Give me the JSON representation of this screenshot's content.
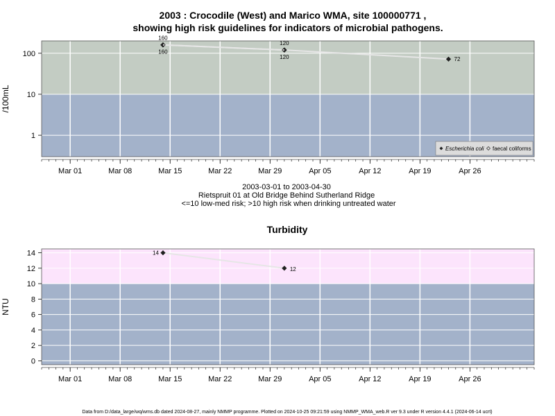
{
  "page": {
    "title_line1": "2003 : Crocodile (West) and Marico WMA, site 100000771 ,",
    "title_line2": "showing high risk guidelines for indicators of microbial pathogens.",
    "subtitle_line1": "2003-03-01 to 2003-04-30",
    "subtitle_line2": "Rietspruit 01 at Old Bridge Behind Sutherland Ridge",
    "subtitle_line3": "<=10 low-med risk; >10 high risk when drinking untreated water",
    "footer": "Data from D:/data_large/wq/wms.db dated 2024-08-27, mainly NMMP programme. Plotted on 2024-10-25 09:21:59 using NMMP_WMA_web.R ver 9.3 under R version 4.4.1 (2024-06-14 ucrt)"
  },
  "colors": {
    "high_risk_microbial": "#c3ccc3",
    "high_risk_turbidity": "#fce4fc",
    "low_risk": "#a3b2ca",
    "grid": "#ffffff",
    "line": "#e6e6e6",
    "point": "#202020"
  },
  "chart_data": [
    {
      "type": "line",
      "title": "",
      "ylabel": "/100mL",
      "xlabel": "",
      "x_axis": {
        "type": "date",
        "range": [
          "2003-02-25",
          "2003-05-05"
        ],
        "ticks": [
          "2003-03-01",
          "2003-03-08",
          "2003-03-15",
          "2003-03-22",
          "2003-03-29",
          "2003-04-05",
          "2003-04-12",
          "2003-04-19",
          "2003-04-26"
        ],
        "tick_labels": [
          "Mar 01",
          "Mar 08",
          "Mar 15",
          "Mar 22",
          "Mar 29",
          "Apr 05",
          "Apr 12",
          "Apr 19",
          "Apr 26"
        ]
      },
      "y_axis": {
        "scale": "log",
        "range": [
          0.3,
          200
        ],
        "ticks": [
          1,
          10,
          100
        ],
        "tick_labels": [
          "1",
          "10",
          "100"
        ]
      },
      "threshold": 10,
      "legend": {
        "placement": "bottom-right",
        "entries": [
          "Escherichia coli",
          "faecal coliforms"
        ]
      },
      "series": [
        {
          "name": "Escherichia coli",
          "marker": "filled-diamond",
          "x": [
            "2003-03-14",
            "2003-03-31",
            "2003-04-23"
          ],
          "y": [
            160,
            120,
            72
          ],
          "labels": [
            "160",
            "120",
            "72"
          ]
        },
        {
          "name": "faecal coliforms",
          "marker": "open-diamond",
          "x": [
            "2003-03-14",
            "2003-03-31"
          ],
          "y": [
            160,
            120
          ],
          "labels": [
            "160",
            "120"
          ]
        }
      ]
    },
    {
      "type": "line",
      "title": "Turbidity",
      "ylabel": "NTU",
      "xlabel": "",
      "x_axis": {
        "type": "date",
        "range": [
          "2003-02-25",
          "2003-05-05"
        ],
        "ticks": [
          "2003-03-01",
          "2003-03-08",
          "2003-03-15",
          "2003-03-22",
          "2003-03-29",
          "2003-04-05",
          "2003-04-12",
          "2003-04-19",
          "2003-04-26"
        ],
        "tick_labels": [
          "Mar 01",
          "Mar 08",
          "Mar 15",
          "Mar 22",
          "Mar 29",
          "Apr 05",
          "Apr 12",
          "Apr 19",
          "Apr 26"
        ]
      },
      "y_axis": {
        "scale": "linear",
        "range": [
          -0.5,
          14.5
        ],
        "ticks": [
          0,
          2,
          4,
          6,
          8,
          10,
          12,
          14
        ],
        "tick_labels": [
          "0",
          "2",
          "4",
          "6",
          "8",
          "10",
          "12",
          "14"
        ]
      },
      "threshold": 10,
      "series": [
        {
          "name": "",
          "marker": "filled-diamond",
          "x": [
            "2003-03-14",
            "2003-03-31"
          ],
          "y": [
            14,
            12
          ],
          "labels": [
            "14",
            "12"
          ]
        }
      ]
    }
  ]
}
